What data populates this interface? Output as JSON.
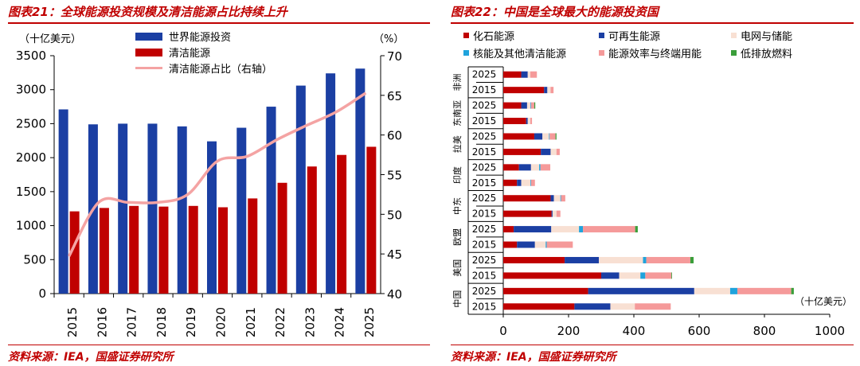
{
  "left": {
    "title": "图表21：全球能源投资规模及清洁能源占比持续上升",
    "source": "资料来源：IEA，国盛证券研究所",
    "unit_left": "（十亿美元）",
    "unit_right": "（%）",
    "legend": [
      "世界能源投资",
      "清洁能源",
      "清洁能源占比（右轴）"
    ],
    "colors": {
      "world": "#1B3FA3",
      "clean": "#C00000",
      "share": "#F4A3A3"
    }
  },
  "right": {
    "title": "图表22：中国是全球最大的能源投资国",
    "source": "资料来源：IEA，国盛证券研究所",
    "unit": "（十亿美元）",
    "legend": [
      "化石能源",
      "可再生能源",
      "电网与储能",
      "核能及其他清洁能源",
      "能源效率与终端用能",
      "低排放燃料"
    ],
    "colors": [
      "#C00000",
      "#1B3FA3",
      "#F8E0D3",
      "#1FA3DC",
      "#F59A9A",
      "#3A9E3A"
    ]
  },
  "chart_data": [
    {
      "type": "bar",
      "categories": [
        "2015",
        "2016",
        "2017",
        "2018",
        "2019",
        "2020",
        "2021",
        "2022",
        "2023",
        "2024",
        "2025"
      ],
      "series": [
        {
          "name": "世界能源投资",
          "values": [
            2710,
            2490,
            2500,
            2500,
            2460,
            2240,
            2440,
            2750,
            3060,
            3240,
            3310
          ]
        },
        {
          "name": "清洁能源",
          "values": [
            1210,
            1260,
            1290,
            1280,
            1290,
            1270,
            1400,
            1630,
            1870,
            2040,
            2160
          ]
        },
        {
          "name": "清洁能源占比（右轴）",
          "axis": "right",
          "type": "line",
          "values": [
            44.7,
            51.5,
            51.5,
            51.5,
            52.5,
            56.7,
            57.3,
            59.4,
            61.2,
            62.9,
            65.3
          ]
        }
      ],
      "ylim": [
        0,
        3500
      ],
      "yticks": [
        0,
        500,
        1000,
        1500,
        2000,
        2500,
        3000,
        3500
      ],
      "y2lim": [
        40,
        70
      ],
      "y2ticks": [
        40,
        45,
        50,
        55,
        60,
        65,
        70
      ],
      "grid": false,
      "legend_position": "top-center"
    },
    {
      "type": "bar",
      "orientation": "horizontal",
      "stacked": true,
      "regions": [
        "非洲",
        "东南亚",
        "拉美",
        "印度",
        "中东",
        "欧盟",
        "美国",
        "中国"
      ],
      "categories": [
        "2025",
        "2015",
        "2025",
        "2015",
        "2025",
        "2015",
        "2025",
        "2015",
        "2025",
        "2015",
        "2025",
        "2015",
        "2025",
        "2015",
        "2025",
        "2015"
      ],
      "series": [
        {
          "name": "化石能源",
          "values": [
            55,
            125,
            55,
            70,
            95,
            115,
            48,
            42,
            145,
            148,
            32,
            42,
            188,
            300,
            260,
            218
          ]
        },
        {
          "name": "可再生能源",
          "values": [
            20,
            10,
            18,
            5,
            25,
            30,
            37,
            13,
            10,
            3,
            115,
            55,
            105,
            55,
            325,
            110
          ]
        },
        {
          "name": "电网与储能",
          "values": [
            8,
            10,
            10,
            8,
            20,
            18,
            25,
            28,
            20,
            12,
            85,
            33,
            135,
            65,
            110,
            75
          ]
        },
        {
          "name": "核能及其他清洁能源",
          "values": [
            0,
            0,
            2,
            0,
            2,
            0,
            4,
            2,
            2,
            0,
            12,
            3,
            10,
            15,
            22,
            0
          ]
        },
        {
          "name": "能源效率与终端用能",
          "values": [
            20,
            9,
            10,
            5,
            18,
            10,
            30,
            12,
            13,
            12,
            160,
            80,
            135,
            80,
            165,
            110
          ]
        },
        {
          "name": "低排放燃料",
          "values": [
            0,
            0,
            3,
            0,
            3,
            0,
            0,
            0,
            0,
            0,
            8,
            0,
            10,
            2,
            8,
            0
          ]
        }
      ],
      "xlim": [
        0,
        1000
      ],
      "xticks": [
        0,
        200,
        400,
        600,
        800,
        1000
      ],
      "grid": false,
      "legend_position": "top"
    }
  ]
}
